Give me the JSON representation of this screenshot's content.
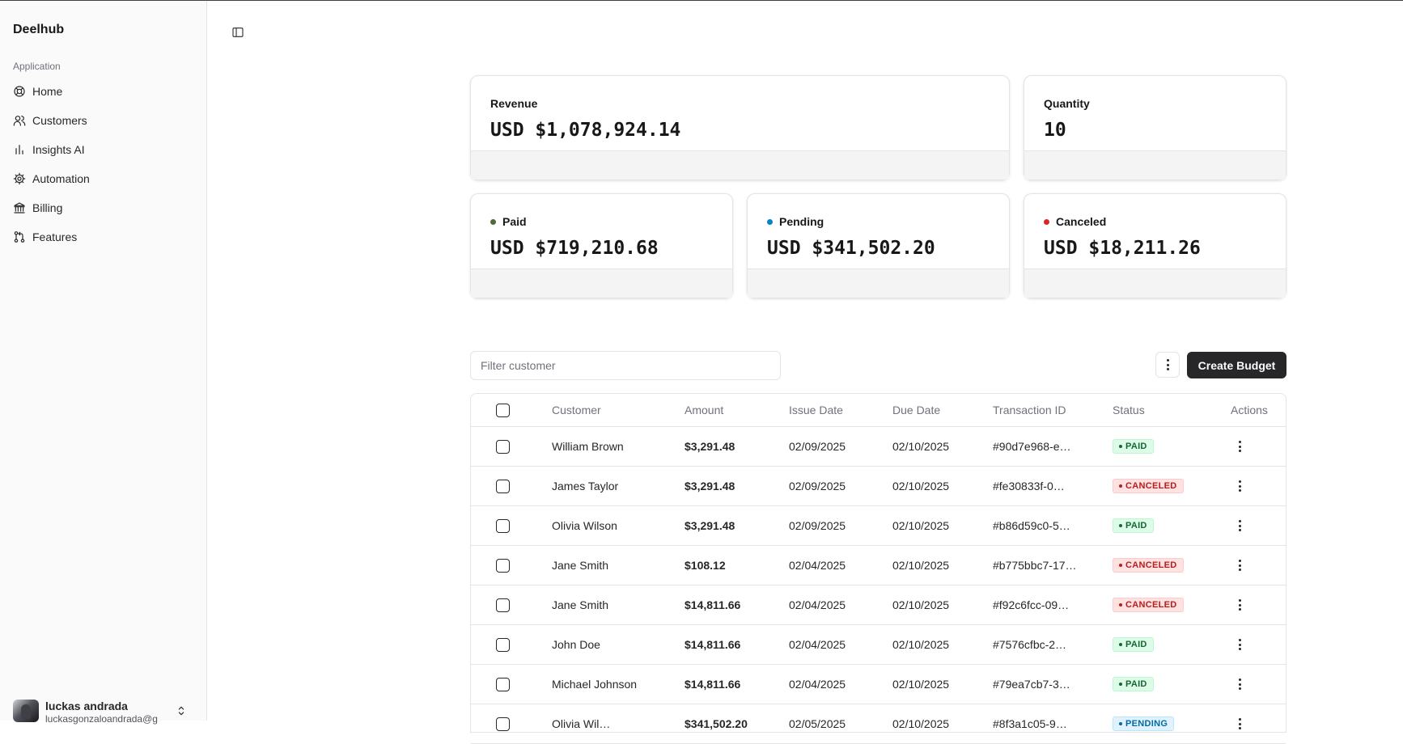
{
  "app": {
    "brand": "Deelhub"
  },
  "sidebar": {
    "group_label": "Application",
    "items": [
      {
        "label": "Home",
        "icon": "home-icon"
      },
      {
        "label": "Customers",
        "icon": "users-icon"
      },
      {
        "label": "Insights AI",
        "icon": "chart-icon"
      },
      {
        "label": "Automation",
        "icon": "gear-icon"
      },
      {
        "label": "Billing",
        "icon": "bank-icon"
      },
      {
        "label": "Features",
        "icon": "git-pull-icon"
      }
    ],
    "user": {
      "name": "luckas andrada",
      "email": "luckasgonzaloandrada@g"
    }
  },
  "cards": {
    "revenue": {
      "label": "Revenue",
      "value": "USD $1,078,924.14"
    },
    "quantity": {
      "label": "Quantity",
      "value": "10"
    },
    "paid": {
      "label": "Paid",
      "value": "USD $719,210.68",
      "color": "#4d6b3c"
    },
    "pending": {
      "label": "Pending",
      "value": "USD $341,502.20",
      "color": "#0284c7"
    },
    "canceled": {
      "label": "Canceled",
      "value": "USD $18,211.26",
      "color": "#dc2626"
    }
  },
  "toolbar": {
    "filter_placeholder": "Filter customer",
    "create_label": "Create Budget"
  },
  "table": {
    "headers": {
      "customer": "Customer",
      "amount": "Amount",
      "issue_date": "Issue Date",
      "due_date": "Due Date",
      "transaction_id": "Transaction ID",
      "status": "Status",
      "actions": "Actions"
    },
    "rows": [
      {
        "customer": "William Brown",
        "amount": "$3,291.48",
        "issue_date": "02/09/2025",
        "due_date": "02/10/2025",
        "transaction_id": "#90d7e968-e…",
        "status": "PAID",
        "status_key": "paid"
      },
      {
        "customer": "James Taylor",
        "amount": "$3,291.48",
        "issue_date": "02/09/2025",
        "due_date": "02/10/2025",
        "transaction_id": "#fe30833f-0…",
        "status": "CANCELED",
        "status_key": "canceled"
      },
      {
        "customer": "Olivia Wilson",
        "amount": "$3,291.48",
        "issue_date": "02/09/2025",
        "due_date": "02/10/2025",
        "transaction_id": "#b86d59c0-5…",
        "status": "PAID",
        "status_key": "paid"
      },
      {
        "customer": "Jane Smith",
        "amount": "$108.12",
        "issue_date": "02/04/2025",
        "due_date": "02/10/2025",
        "transaction_id": "#b775bbc7-17…",
        "status": "CANCELED",
        "status_key": "canceled"
      },
      {
        "customer": "Jane Smith",
        "amount": "$14,811.66",
        "issue_date": "02/04/2025",
        "due_date": "02/10/2025",
        "transaction_id": "#f92c6fcc-09…",
        "status": "CANCELED",
        "status_key": "canceled"
      },
      {
        "customer": "John Doe",
        "amount": "$14,811.66",
        "issue_date": "02/04/2025",
        "due_date": "02/10/2025",
        "transaction_id": "#7576cfbc-2…",
        "status": "PAID",
        "status_key": "paid"
      },
      {
        "customer": "Michael Johnson",
        "amount": "$14,811.66",
        "issue_date": "02/04/2025",
        "due_date": "02/10/2025",
        "transaction_id": "#79ea7cb7-3…",
        "status": "PAID",
        "status_key": "paid"
      },
      {
        "customer": "Olivia Wil…",
        "amount": "$341,502.20",
        "issue_date": "02/05/2025",
        "due_date": "02/10/2025",
        "transaction_id": "#8f3a1c05-9…",
        "status": "PENDING",
        "status_key": "pending"
      }
    ]
  }
}
